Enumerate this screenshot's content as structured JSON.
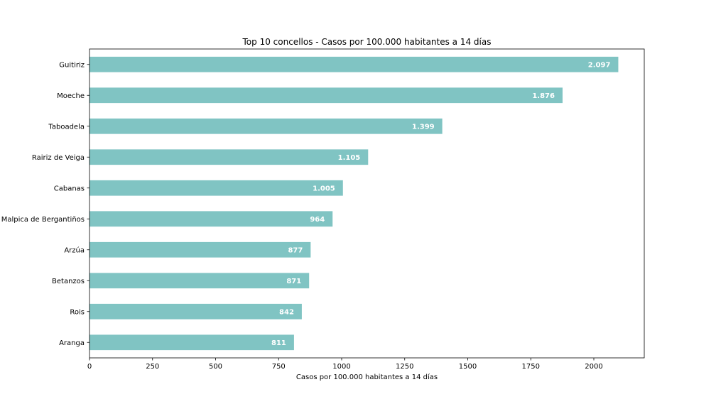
{
  "chart_data": {
    "type": "bar",
    "orientation": "horizontal",
    "title": "Top 10 concellos - Casos por 100.000 habitantes a 14 días",
    "xlabel": "Casos por 100.000 habitantes a 14 días",
    "ylabel": "",
    "xlim": [
      0,
      2200
    ],
    "xticks": [
      0,
      250,
      500,
      750,
      1000,
      1250,
      1500,
      1750,
      2000
    ],
    "grid": false,
    "legend": "none",
    "bar_color": "#80c4c3",
    "categories": [
      "Guitiriz",
      "Moeche",
      "Taboadela",
      "Rairiz de Veiga",
      "Cabanas",
      "Malpica de Bergantiños",
      "Arzúa",
      "Betanzos",
      "Rois",
      "Aranga"
    ],
    "values": [
      2097,
      1876,
      1399,
      1105,
      1005,
      964,
      877,
      871,
      842,
      811
    ],
    "data_labels": [
      "2.097",
      "1.876",
      "1.399",
      "1.105",
      "1.005",
      "964",
      "877",
      "871",
      "842",
      "811"
    ]
  }
}
